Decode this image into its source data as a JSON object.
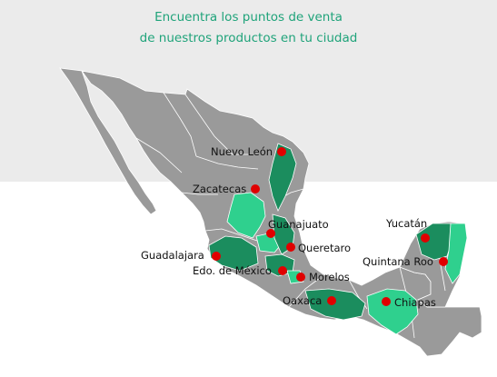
{
  "heading": {
    "line1": "Encuentra los puntos de venta",
    "line2": "de nuestros productos en tu ciudad"
  },
  "colors": {
    "heading": "#1fa37a",
    "land": "#9a9a9a",
    "border": "#ffffff",
    "dark_green": "#1b8d5e",
    "light_green": "#2fd08e",
    "pin": "#e00000"
  },
  "map": {
    "states": [
      {
        "label": "Nuevo León"
      },
      {
        "label": "Zacatecas"
      },
      {
        "label": "Guanajuato"
      },
      {
        "label": "Queretaro"
      },
      {
        "label": "Guadalajara"
      },
      {
        "label": "Edo. de México"
      },
      {
        "label": "Morelos"
      },
      {
        "label": "Oaxaca"
      },
      {
        "label": "Chiapas"
      },
      {
        "label": "Yucatán"
      },
      {
        "label": "Quintana Roo"
      }
    ]
  }
}
